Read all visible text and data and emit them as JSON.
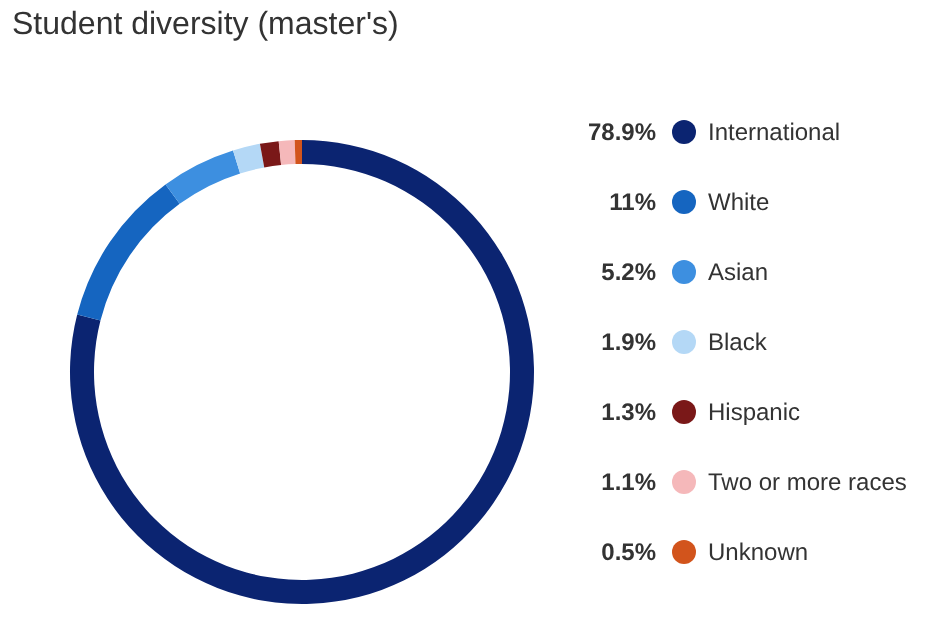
{
  "chart_data": {
    "type": "donut",
    "title": "Student diversity (master's)",
    "categories": [
      "International",
      "White",
      "Asian",
      "Black",
      "Hispanic",
      "Two or more races",
      "Unknown"
    ],
    "values": [
      78.9,
      11,
      5.2,
      1.9,
      1.3,
      1.1,
      0.5
    ],
    "value_labels": [
      "78.9%",
      "11%",
      "5.2%",
      "1.9%",
      "1.3%",
      "1.1%",
      "0.5%"
    ],
    "colors": [
      "#0b2471",
      "#1565c0",
      "#3d8fe0",
      "#b4d8f6",
      "#7a1818",
      "#f5b8ba",
      "#d2541c"
    ],
    "legend": "right"
  }
}
